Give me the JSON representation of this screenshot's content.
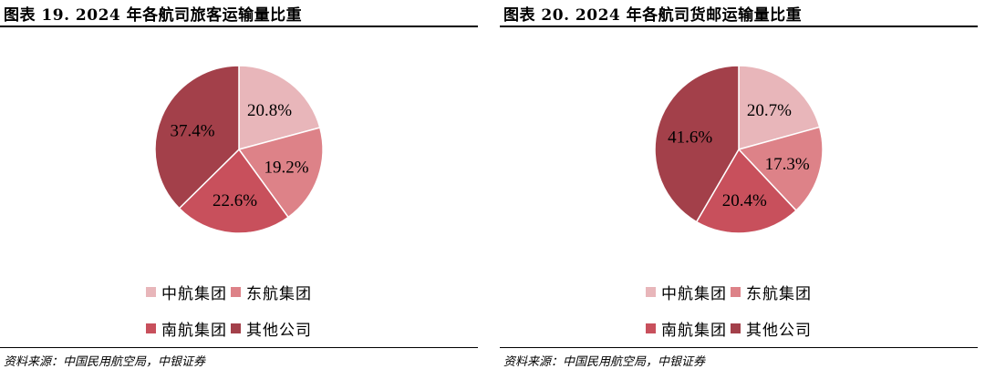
{
  "charts": [
    {
      "title": "图表 19.   2024 年各航司旅客运输量比重",
      "source": "资料来源：中国民用航空局，中银证券"
    },
    {
      "title": "图表 20.   2024 年各航司货邮运输量比重",
      "source": "资料来源：中国民用航空局，中银证券"
    }
  ],
  "colors": {
    "中航集团": "#e8b6ba",
    "东航集团": "#dd8288",
    "南航集团": "#c8505c",
    "其他公司": "#a3404a"
  },
  "chart_data": [
    {
      "type": "pie",
      "title": "2024 年各航司旅客运输量比重",
      "categories": [
        "中航集团",
        "东航集团",
        "南航集团",
        "其他公司"
      ],
      "values": [
        20.8,
        19.2,
        22.6,
        37.4
      ],
      "data_labels": [
        "20.8%",
        "19.2%",
        "22.6%",
        "37.4%"
      ],
      "legend": "bottom"
    },
    {
      "type": "pie",
      "title": "2024 年各航司货邮运输量比重",
      "categories": [
        "中航集团",
        "东航集团",
        "南航集团",
        "其他公司"
      ],
      "values": [
        20.7,
        17.3,
        20.4,
        41.6
      ],
      "data_labels": [
        "20.7%",
        "17.3%",
        "20.4%",
        "41.6%"
      ],
      "legend": "bottom"
    }
  ]
}
